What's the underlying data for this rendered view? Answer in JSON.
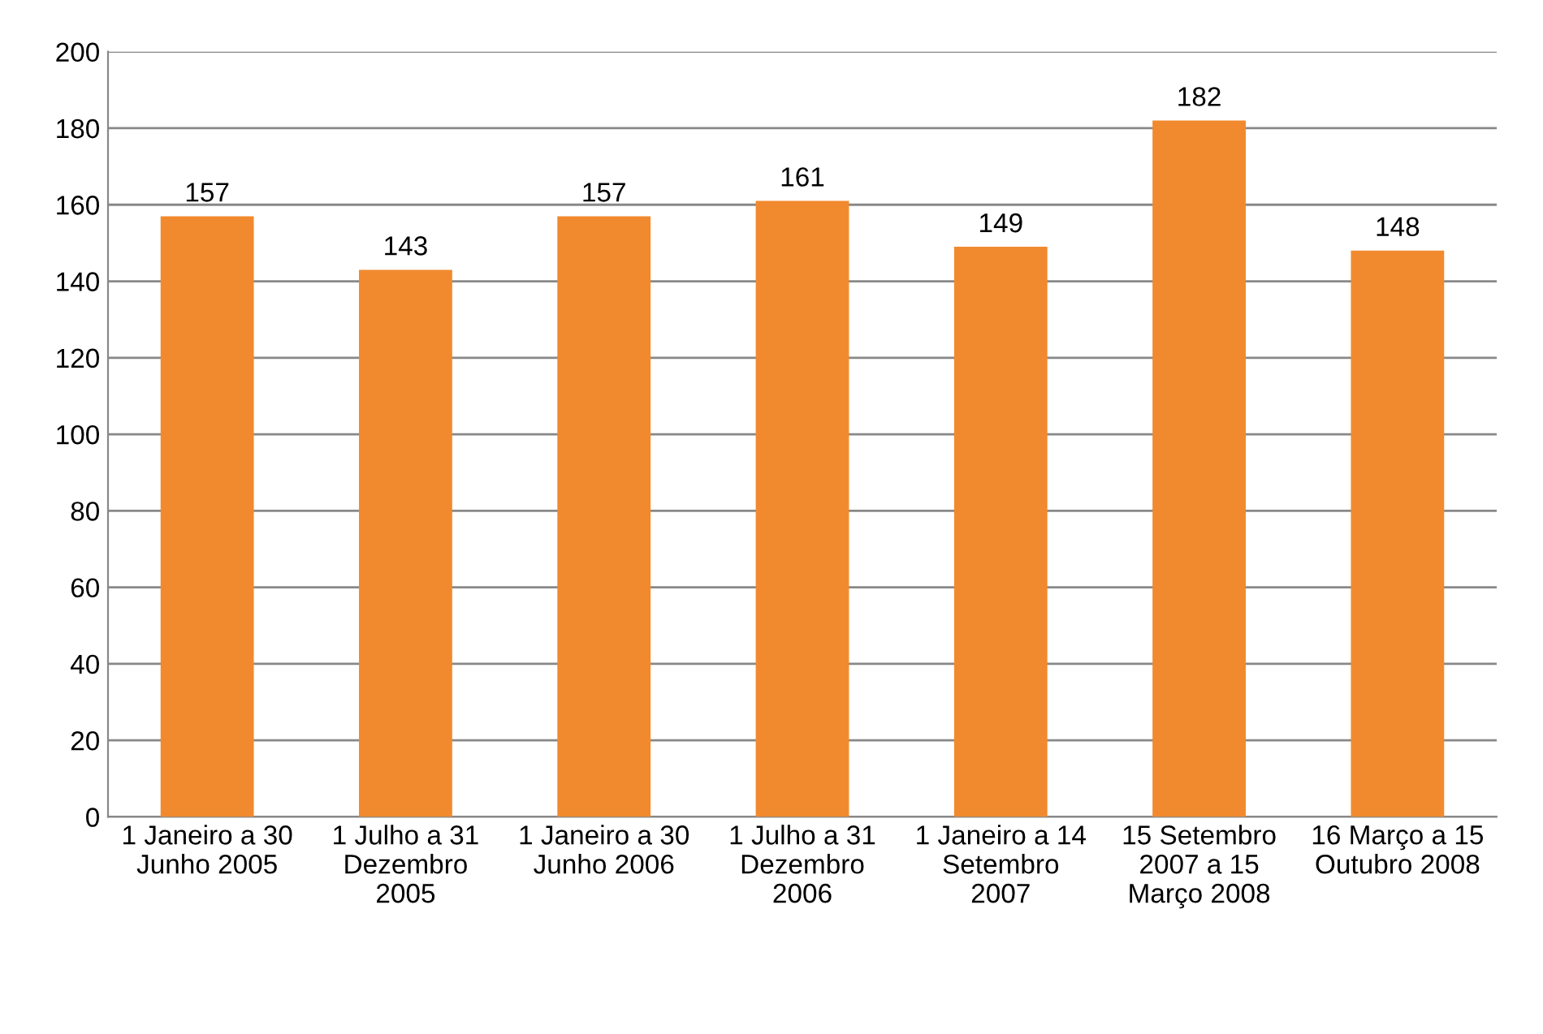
{
  "chart_data": {
    "type": "bar",
    "categories": [
      "1 Janeiro a 30\nJunho 2005",
      "1 Julho a 31\nDezembro\n2005",
      "1 Janeiro a 30\nJunho 2006",
      "1 Julho a 31\nDezembro\n2006",
      "1 Janeiro a 14\nSetembro\n2007",
      "15 Setembro\n2007 a 15\nMarço 2008",
      "16 Março a 15\nOutubro 2008"
    ],
    "values": [
      157,
      143,
      157,
      161,
      149,
      182,
      148
    ],
    "color": "#f18a2e",
    "ylim": [
      0,
      200
    ],
    "yticks": [
      0,
      20,
      40,
      60,
      80,
      100,
      120,
      140,
      160,
      180,
      200
    ],
    "grid": "y",
    "data_labels": true
  }
}
